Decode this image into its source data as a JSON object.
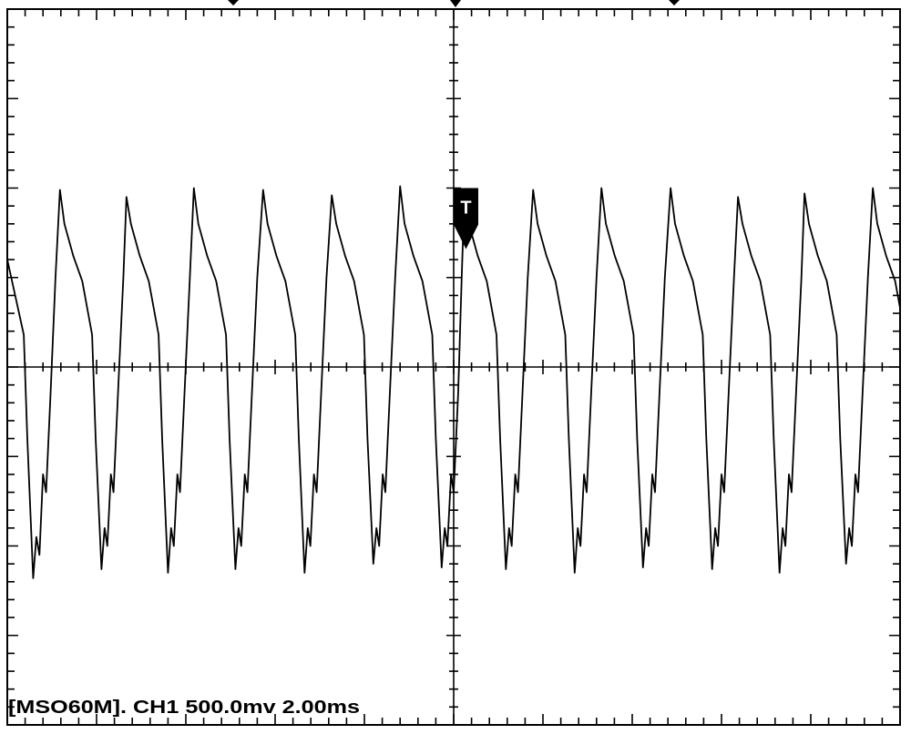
{
  "chart_data": {
    "type": "line",
    "caption": "[MSO60M]. CH1 500.0mv 2.00ms",
    "trigger_label": "T",
    "color": "#000000",
    "xlim": [
      -10,
      10
    ],
    "ylim": [
      -2000,
      2000
    ],
    "xticks": [
      -10,
      -8,
      -6,
      -4,
      -2,
      0,
      2,
      4,
      6,
      8,
      10
    ],
    "yticks": [
      -2000,
      -1500,
      -1000,
      -500,
      0,
      500,
      1000,
      1500,
      2000
    ],
    "x": [
      -10.0,
      -9.78,
      -9.63,
      -9.55,
      -9.42,
      -9.35,
      -9.28,
      -9.2,
      -9.13,
      -9.03,
      -8.92,
      -8.82,
      -8.72,
      -8.52,
      -8.32,
      -8.1,
      -8.02,
      -7.89,
      -7.82,
      -7.76,
      -7.68,
      -7.62,
      -7.52,
      -7.4,
      -7.33,
      -7.23,
      -7.03,
      -6.83,
      -6.61,
      -6.53,
      -6.4,
      -6.33,
      -6.27,
      -6.19,
      -6.13,
      -6.03,
      -5.91,
      -5.82,
      -5.72,
      -5.52,
      -5.32,
      -5.1,
      -5.02,
      -4.89,
      -4.82,
      -4.76,
      -4.68,
      -4.62,
      -4.52,
      -4.4,
      -4.27,
      -4.17,
      -3.97,
      -3.77,
      -3.55,
      -3.47,
      -3.34,
      -3.27,
      -3.21,
      -3.13,
      -3.07,
      -2.97,
      -2.85,
      -2.73,
      -2.63,
      -2.43,
      -2.23,
      -2.01,
      -1.93,
      -1.8,
      -1.73,
      -1.67,
      -1.59,
      -1.53,
      -1.43,
      -1.31,
      -1.2,
      -1.1,
      -0.9,
      -0.7,
      -0.48,
      -0.4,
      -0.27,
      -0.2,
      -0.14,
      -0.06,
      0.0,
      0.1,
      0.18,
      0.24,
      0.34,
      0.54,
      0.74,
      0.96,
      1.04,
      1.17,
      1.24,
      1.3,
      1.38,
      1.44,
      1.54,
      1.66,
      1.78,
      1.88,
      2.08,
      2.28,
      2.5,
      2.58,
      2.71,
      2.78,
      2.84,
      2.92,
      2.98,
      3.08,
      3.2,
      3.31,
      3.41,
      3.61,
      3.81,
      4.03,
      4.11,
      4.24,
      4.31,
      4.37,
      4.45,
      4.51,
      4.61,
      4.73,
      4.86,
      4.96,
      5.16,
      5.36,
      5.58,
      5.66,
      5.79,
      5.86,
      5.92,
      6.0,
      6.06,
      6.16,
      6.28,
      6.37,
      6.47,
      6.67,
      6.87,
      7.09,
      7.17,
      7.3,
      7.37,
      7.43,
      7.51,
      7.57,
      7.67,
      7.79,
      7.86,
      7.96,
      8.16,
      8.36,
      8.58,
      8.66,
      8.79,
      8.86,
      8.92,
      9.0,
      9.06,
      9.16,
      9.28,
      9.39,
      9.49,
      9.69,
      9.89,
      10.0
    ],
    "values": [
      600,
      350,
      180,
      -400,
      -1180,
      -950,
      -1050,
      -600,
      -700,
      -150,
      500,
      990,
      800,
      620,
      480,
      180,
      -400,
      -1130,
      -900,
      -1000,
      -600,
      -700,
      -150,
      500,
      950,
      800,
      620,
      480,
      180,
      -400,
      -1150,
      -900,
      -1000,
      -600,
      -700,
      -150,
      500,
      1000,
      800,
      620,
      480,
      180,
      -400,
      -1130,
      -900,
      -1000,
      -600,
      -700,
      -150,
      500,
      990,
      800,
      620,
      480,
      180,
      -400,
      -1150,
      -900,
      -1000,
      -600,
      -700,
      -150,
      500,
      960,
      800,
      620,
      480,
      180,
      -400,
      -1100,
      -900,
      -1000,
      -600,
      -700,
      -150,
      500,
      1010,
      800,
      620,
      480,
      180,
      -400,
      -1120,
      -900,
      -1000,
      -600,
      -700,
      -150,
      500,
      960,
      800,
      620,
      480,
      180,
      -400,
      -1130,
      -900,
      -1000,
      -600,
      -700,
      -150,
      500,
      990,
      800,
      620,
      480,
      180,
      -400,
      -1150,
      -900,
      -1000,
      -600,
      -700,
      -150,
      500,
      1000,
      800,
      620,
      480,
      180,
      -400,
      -1120,
      -900,
      -1000,
      -600,
      -700,
      -150,
      500,
      1000,
      800,
      620,
      480,
      180,
      -400,
      -1130,
      -900,
      -1000,
      -600,
      -700,
      -150,
      500,
      950,
      800,
      620,
      480,
      180,
      -400,
      -1150,
      -900,
      -1000,
      -600,
      -700,
      -150,
      500,
      970,
      800,
      620,
      480,
      180,
      -400,
      -1100,
      -900,
      -1000,
      -600,
      -700,
      -150,
      500,
      1000,
      800,
      620,
      480,
      330
    ]
  }
}
